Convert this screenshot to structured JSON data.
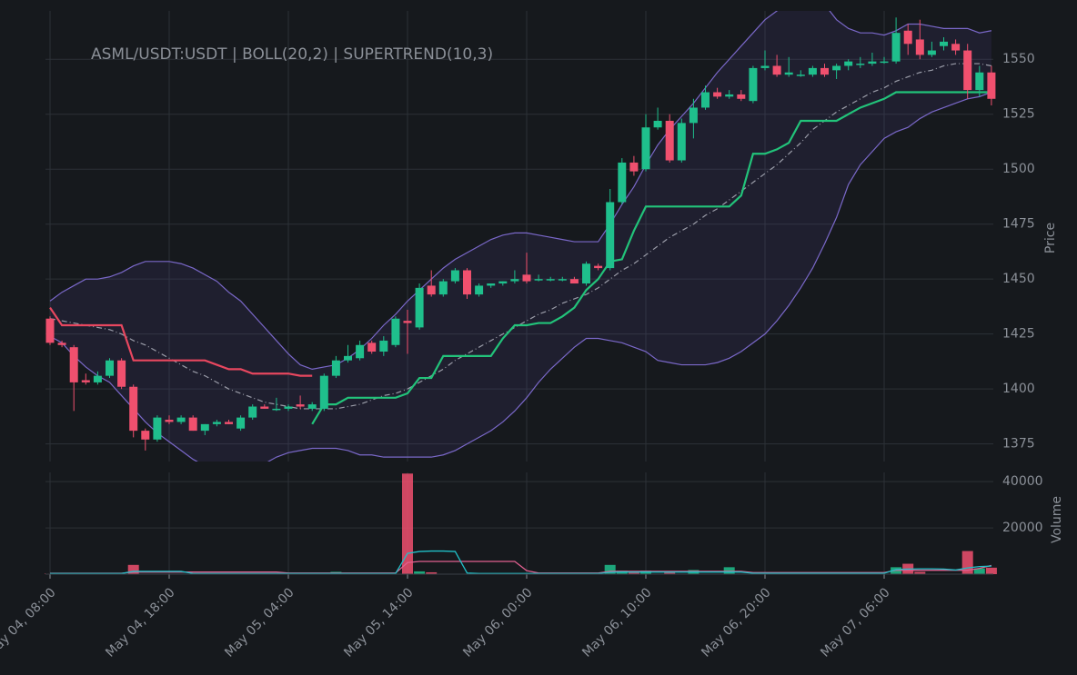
{
  "chart_data": [
    {
      "type": "candlestick",
      "title": "ASML/USDT:USDT | BOLL(20,2) | SUPERTREND(10,3)",
      "ylabel": "Price",
      "x": [
        "May 04, 08:00",
        "May 04, 09:00",
        "May 04, 10:00",
        "May 04, 11:00",
        "May 04, 12:00",
        "May 04, 13:00",
        "May 04, 14:00",
        "May 04, 15:00",
        "May 04, 16:00",
        "May 04, 17:00",
        "May 04, 18:00",
        "May 04, 19:00",
        "May 04, 20:00",
        "May 04, 21:00",
        "May 04, 22:00",
        "May 04, 23:00",
        "May 05, 00:00",
        "May 05, 01:00",
        "May 05, 02:00",
        "May 05, 03:00",
        "May 05, 04:00",
        "May 05, 05:00",
        "May 05, 06:00",
        "May 05, 07:00",
        "May 05, 08:00",
        "May 05, 09:00",
        "May 05, 10:00",
        "May 05, 11:00",
        "May 05, 12:00",
        "May 05, 13:00",
        "May 05, 14:00",
        "May 05, 15:00",
        "May 05, 16:00",
        "May 05, 17:00",
        "May 05, 18:00",
        "May 05, 19:00",
        "May 05, 20:00",
        "May 05, 21:00",
        "May 05, 22:00",
        "May 05, 23:00",
        "May 06, 00:00",
        "May 06, 01:00",
        "May 06, 02:00",
        "May 06, 03:00",
        "May 06, 04:00",
        "May 06, 05:00",
        "May 06, 06:00",
        "May 06, 07:00",
        "May 06, 08:00",
        "May 06, 09:00",
        "May 06, 10:00",
        "May 06, 11:00",
        "May 06, 12:00",
        "May 06, 13:00",
        "May 06, 14:00",
        "May 06, 15:00",
        "May 06, 16:00",
        "May 06, 17:00",
        "May 06, 18:00",
        "May 06, 19:00",
        "May 06, 20:00",
        "May 06, 21:00",
        "May 06, 22:00",
        "May 06, 23:00",
        "May 07, 00:00",
        "May 07, 01:00",
        "May 07, 02:00",
        "May 07, 03:00",
        "May 07, 04:00",
        "May 07, 05:00",
        "May 07, 06:00",
        "May 07, 07:00",
        "May 07, 08:00",
        "May 07, 09:00",
        "May 07, 10:00",
        "May 07, 11:00",
        "May 07, 12:00",
        "May 07, 13:00",
        "May 07, 14:00",
        "May 07, 15:00"
      ],
      "open": [
        1432,
        1421,
        1419,
        1404,
        1403,
        1406,
        1413,
        1401,
        1381,
        1377,
        1386,
        1385,
        1387,
        1381,
        1384,
        1385,
        1382,
        1387,
        1392,
        1391,
        1391,
        1393,
        1391,
        1391,
        1406,
        1413,
        1414,
        1421,
        1417,
        1420,
        1431,
        1428,
        1447,
        1443,
        1449,
        1454,
        1443,
        1447,
        1448,
        1449,
        1452,
        1450,
        1450,
        1450,
        1450,
        1448,
        1456,
        1455,
        1485,
        1503,
        1500,
        1519,
        1522,
        1504,
        1521,
        1528,
        1535,
        1533,
        1534,
        1531,
        1546,
        1547,
        1543,
        1543,
        1543,
        1546,
        1545,
        1547,
        1548,
        1548,
        1549,
        1549,
        1563,
        1559,
        1552,
        1556,
        1557,
        1554,
        1536,
        1544
      ],
      "high": [
        1433,
        1422,
        1420,
        1407,
        1408,
        1414,
        1414,
        1402,
        1382,
        1388,
        1388,
        1388,
        1388,
        1384,
        1386,
        1386,
        1388,
        1393,
        1393,
        1396,
        1393,
        1397,
        1394,
        1407,
        1415,
        1420,
        1422,
        1422,
        1424,
        1433,
        1436,
        1448,
        1454,
        1450,
        1455,
        1455,
        1448,
        1448,
        1449,
        1454,
        1462,
        1452,
        1451,
        1451,
        1451,
        1458,
        1457,
        1491,
        1505,
        1506,
        1525,
        1528,
        1525,
        1523,
        1532,
        1538,
        1537,
        1536,
        1536,
        1547,
        1554,
        1552,
        1551,
        1545,
        1547,
        1548,
        1548,
        1550,
        1551,
        1553,
        1551,
        1569,
        1566,
        1568,
        1558,
        1560,
        1559,
        1557,
        1547,
        1547
      ],
      "low": [
        1420,
        1419,
        1390,
        1402,
        1402,
        1405,
        1400,
        1378,
        1372,
        1376,
        1384,
        1384,
        1381,
        1379,
        1383,
        1384,
        1381,
        1386,
        1391,
        1390,
        1390,
        1391,
        1390,
        1390,
        1405,
        1412,
        1413,
        1416,
        1415,
        1419,
        1416,
        1427,
        1442,
        1442,
        1448,
        1441,
        1442,
        1446,
        1447,
        1448,
        1448,
        1449,
        1449,
        1449,
        1448,
        1447,
        1454,
        1454,
        1484,
        1497,
        1499,
        1518,
        1503,
        1503,
        1514,
        1527,
        1532,
        1532,
        1531,
        1530,
        1545,
        1542,
        1542,
        1542,
        1542,
        1542,
        1541,
        1545,
        1546,
        1547,
        1548,
        1548,
        1552,
        1550,
        1551,
        1554,
        1552,
        1532,
        1533,
        1529
      ],
      "close": [
        1421,
        1420,
        1403,
        1403,
        1406,
        1413,
        1401,
        1381,
        1377,
        1387,
        1385,
        1387,
        1381,
        1384,
        1385,
        1384,
        1387,
        1392,
        1391,
        1391,
        1392,
        1392,
        1393,
        1406,
        1413,
        1415,
        1420,
        1417,
        1422,
        1432,
        1430,
        1446,
        1443,
        1449,
        1454,
        1443,
        1447,
        1448,
        1449,
        1450,
        1449,
        1450,
        1450,
        1450,
        1448,
        1457,
        1455,
        1485,
        1503,
        1499,
        1519,
        1522,
        1504,
        1521,
        1528,
        1535,
        1533,
        1534,
        1532,
        1546,
        1547,
        1543,
        1544,
        1543,
        1546,
        1543,
        1547,
        1549,
        1548,
        1549,
        1549,
        1562,
        1557,
        1552,
        1554,
        1558,
        1554,
        1536,
        1544,
        1532
      ],
      "up_color": "#1fbf8c",
      "down_color": "#f0506e",
      "band_fill": "rgba(90,80,170,0.13)",
      "series": [
        {
          "color": "#7a68c9",
          "values": [
            1440,
            1444,
            1447,
            1450,
            1450,
            1451,
            1453,
            1456,
            1458,
            1458,
            1458,
            1457,
            1455,
            1452,
            1449,
            1444,
            1440,
            1434,
            1428,
            1422,
            1416,
            1411,
            1409,
            1410,
            1411,
            1414,
            1418,
            1423,
            1429,
            1434,
            1440,
            1445,
            1450,
            1455,
            1459,
            1462,
            1465,
            1468,
            1470,
            1471,
            1471,
            1470,
            1469,
            1468,
            1467,
            1467,
            1467,
            1475,
            1484,
            1492,
            1502,
            1511,
            1518,
            1524,
            1530,
            1537,
            1544,
            1550,
            1556,
            1562,
            1568,
            1572,
            1575,
            1577,
            1577,
            1575,
            1568,
            1564,
            1562,
            1562,
            1561,
            1563,
            1566,
            1566,
            1565,
            1564,
            1564,
            1564,
            1562,
            1563
          ]
        },
        {
          "color": "#7a68c9",
          "values": [
            1424,
            1421,
            1415,
            1410,
            1406,
            1403,
            1397,
            1391,
            1385,
            1380,
            1376,
            1372,
            1368,
            1365,
            1363,
            1362,
            1362,
            1364,
            1366,
            1369,
            1371,
            1372,
            1373,
            1373,
            1373,
            1372,
            1370,
            1370,
            1369,
            1369,
            1369,
            1369,
            1369,
            1370,
            1372,
            1375,
            1378,
            1381,
            1385,
            1390,
            1396,
            1403,
            1409,
            1414,
            1419,
            1423,
            1423,
            1422,
            1421,
            1419,
            1417,
            1413,
            1412,
            1411,
            1411,
            1411,
            1412,
            1414,
            1417,
            1421,
            1425,
            1431,
            1438,
            1446,
            1455,
            1466,
            1478,
            1493,
            1502,
            1508,
            1514,
            1517,
            1519,
            1523,
            1526,
            1528,
            1530,
            1532,
            1533,
            1535
          ]
        },
        {
          "color": "#9a9ca8",
          "dash": true,
          "values": [
            1432,
            1431,
            1430,
            1429,
            1428,
            1427,
            1425,
            1422,
            1420,
            1417,
            1414,
            1411,
            1408,
            1406,
            1403,
            1400,
            1398,
            1396,
            1394,
            1393,
            1392,
            1391,
            1391,
            1391,
            1391,
            1392,
            1393,
            1395,
            1397,
            1398,
            1400,
            1403,
            1406,
            1409,
            1413,
            1416,
            1419,
            1422,
            1425,
            1428,
            1431,
            1434,
            1436,
            1439,
            1441,
            1443,
            1446,
            1450,
            1454,
            1457,
            1461,
            1465,
            1469,
            1472,
            1475,
            1479,
            1482,
            1486,
            1490,
            1494,
            1498,
            1502,
            1507,
            1512,
            1518,
            1522,
            1526,
            1529,
            1532,
            1535,
            1537,
            1540,
            1542,
            1544,
            1545,
            1547,
            1548,
            1548,
            1548,
            1547
          ]
        },
        {
          "color": "#e8475f",
          "width": 2.2,
          "values": [
            1437,
            1429,
            1429,
            1429,
            1429,
            1429,
            1429,
            1413,
            1413,
            1413,
            1413,
            1413,
            1413,
            1413,
            1411,
            1409,
            1409,
            1407,
            1407,
            1407,
            1407,
            1406,
            1406,
            null,
            null,
            null,
            null,
            null,
            null,
            null,
            null,
            null,
            null,
            null,
            null,
            null,
            null,
            null,
            null,
            null,
            null,
            null,
            null,
            null,
            null,
            null,
            null,
            null,
            null,
            null,
            null,
            null,
            null,
            null,
            null,
            null,
            null,
            null,
            null,
            null,
            null,
            null,
            null,
            null,
            null,
            null,
            null,
            null,
            null,
            null,
            null,
            null,
            null,
            null,
            null,
            null,
            null,
            null,
            null,
            null
          ]
        },
        {
          "color": "#22c37a",
          "width": 2.2,
          "values": [
            null,
            null,
            null,
            null,
            null,
            null,
            null,
            null,
            null,
            null,
            null,
            null,
            null,
            null,
            null,
            null,
            null,
            null,
            null,
            null,
            null,
            null,
            1384,
            1393,
            1393,
            1396,
            1396,
            1396,
            1396,
            1396,
            1398,
            1405,
            1405,
            1415,
            1415,
            1415,
            1415,
            1415,
            1423,
            1429,
            1429,
            1430,
            1430,
            1433,
            1437,
            1445,
            1450,
            1458,
            1459,
            1472,
            1483,
            1483,
            1483,
            1483,
            1483,
            1483,
            1483,
            1483,
            1488,
            1507,
            1507,
            1509,
            1512,
            1522,
            1522,
            1522,
            1522,
            1525,
            1528,
            1530,
            1532,
            1535,
            1535,
            1535,
            1535,
            1535,
            1535,
            1535,
            1535,
            1535
          ]
        }
      ],
      "ylim": [
        1367,
        1572
      ],
      "yticks": [
        1375,
        1400,
        1425,
        1450,
        1475,
        1500,
        1525,
        1550
      ],
      "xticks": [
        "May 04, 08:00",
        "May 04, 18:00",
        "May 05, 04:00",
        "May 05, 14:00",
        "May 06, 00:00",
        "May 06, 10:00",
        "May 06, 20:00",
        "May 07, 06:00"
      ],
      "grid": true
    },
    {
      "type": "bar",
      "ylabel": "Volume",
      "values": [
        200,
        200,
        200,
        200,
        200,
        200,
        200,
        4000,
        200,
        200,
        200,
        200,
        200,
        200,
        200,
        200,
        200,
        200,
        200,
        200,
        200,
        200,
        200,
        200,
        1000,
        200,
        200,
        200,
        200,
        200,
        43500,
        1200,
        800,
        200,
        200,
        200,
        200,
        200,
        200,
        200,
        200,
        200,
        200,
        200,
        200,
        600,
        200,
        4000,
        1500,
        1200,
        1500,
        200,
        800,
        200,
        1800,
        200,
        200,
        3000,
        200,
        200,
        200,
        200,
        200,
        200,
        200,
        200,
        600,
        200,
        200,
        200,
        200,
        3000,
        4500,
        1000,
        200,
        200,
        200,
        10000,
        2500,
        2800
      ],
      "series": [
        {
          "color": "#e06090",
          "values": [
            400,
            400,
            400,
            400,
            400,
            400,
            400,
            900,
            900,
            900,
            900,
            900,
            900,
            900,
            900,
            900,
            900,
            900,
            900,
            900,
            500,
            500,
            500,
            500,
            500,
            500,
            500,
            500,
            500,
            500,
            5000,
            5500,
            5500,
            5500,
            5500,
            5500,
            5500,
            5500,
            5500,
            5500,
            1500,
            500,
            500,
            500,
            500,
            500,
            500,
            1200,
            1200,
            1200,
            1200,
            1200,
            1200,
            1200,
            1200,
            1200,
            1200,
            1200,
            1200,
            700,
            700,
            700,
            700,
            700,
            700,
            700,
            700,
            700,
            700,
            700,
            700,
            1700,
            1700,
            1700,
            1700,
            1700,
            1700,
            1700,
            2500,
            3800
          ]
        },
        {
          "color": "#20c0c8",
          "values": [
            300,
            300,
            300,
            300,
            300,
            300,
            300,
            1200,
            1200,
            1200,
            1200,
            1200,
            300,
            300,
            300,
            300,
            300,
            300,
            300,
            300,
            300,
            300,
            300,
            300,
            300,
            300,
            300,
            300,
            300,
            300,
            9000,
            9800,
            10000,
            10000,
            9800,
            500,
            300,
            300,
            300,
            300,
            300,
            300,
            300,
            300,
            300,
            300,
            300,
            800,
            900,
            900,
            900,
            900,
            900,
            900,
            900,
            900,
            900,
            900,
            900,
            400,
            400,
            400,
            400,
            400,
            400,
            400,
            400,
            400,
            400,
            400,
            400,
            2000,
            2200,
            2300,
            2300,
            2200,
            1800,
            2700,
            3300,
            3500
          ]
        }
      ],
      "ylim": [
        0,
        44000
      ],
      "yticks": [
        20000,
        40000
      ],
      "grid": true
    }
  ]
}
